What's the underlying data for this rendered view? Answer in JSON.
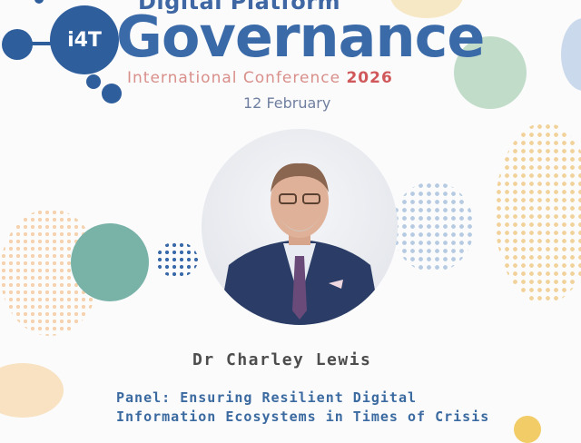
{
  "header": {
    "logo_text": "i4T",
    "title_line1": "Digital Platform",
    "title_main": "Governance",
    "subtitle": "International Conference",
    "year": "2026",
    "date": "12 February"
  },
  "speaker": {
    "name": "Dr Charley Lewis",
    "panel": "Panel: Ensuring Resilient Digital Information Ecosystems in Times of Crisis"
  },
  "colors": {
    "brand_blue": "#3a6aa8",
    "accent_red": "#d0585a",
    "accent_gold": "#e8b25a",
    "accent_teal": "#6aa79a"
  }
}
